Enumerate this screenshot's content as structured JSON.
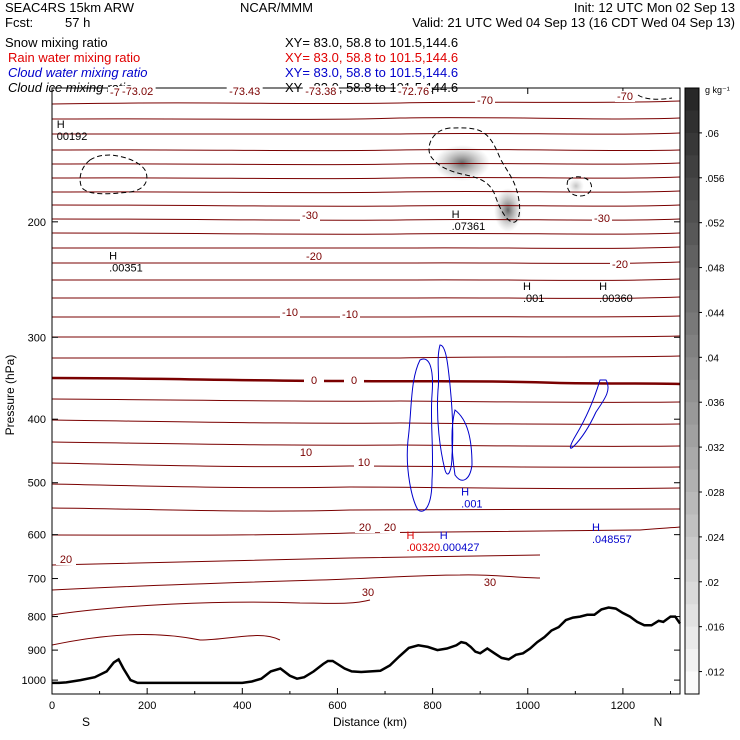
{
  "header": {
    "model": "SEAC4RS 15km ARW",
    "center": "NCAR/MMM",
    "init": "Init: 12 UTC Mon 02 Sep 13",
    "fcst_label": "Fcst:",
    "fcst_value": "57 h",
    "valid": "Valid: 21 UTC Wed 04 Sep 13 (16 CDT Wed 04 Sep 13)"
  },
  "fields": [
    {
      "name": "Snow mixing ratio",
      "xy": "XY=  83.0, 58.8 to 101.5,144.6",
      "color": "#000000"
    },
    {
      "name": "Rain water mixing ratio",
      "xy": "XY=  83.0, 58.8 to 101.5,144.6",
      "color": "#e00000"
    },
    {
      "name": "Cloud water mixing ratio",
      "xy": "XY=  83.0, 58.8 to 101.5,144.6",
      "color": "#0000cc"
    },
    {
      "name": "Cloud ice mixing ratio",
      "xy": "XY=  83.0, 58.8 to 101.5,144.6",
      "color": "#000000"
    }
  ],
  "chart_data": {
    "type": "contour cross-section",
    "xlabel": "Distance (km)",
    "ylabel": "Pressure (hPa)",
    "x_ticks": [
      0,
      200,
      400,
      600,
      800,
      1000,
      1200
    ],
    "y_ticks": [
      200,
      300,
      400,
      500,
      600,
      700,
      800,
      900,
      1000
    ],
    "xlim": [
      0,
      1320
    ],
    "ylim": [
      1050,
      125
    ],
    "y_scale": "log",
    "end_labels": {
      "left": "S",
      "right": "N"
    },
    "colorbar": {
      "units": "g kg⁻¹",
      "ticks": [
        ".012",
        ".016",
        ".02",
        ".024",
        ".028",
        ".032",
        ".036",
        ".04",
        ".044",
        ".048",
        ".052",
        ".056",
        ".06"
      ],
      "range": [
        0.01,
        0.064
      ]
    },
    "temperature_contours": {
      "color": "#7a0000",
      "zero_color": "#7a0000",
      "interval_c": 5,
      "labels": [
        "-70",
        "-70",
        "-70",
        "-30",
        "-30",
        "-20",
        "-20",
        "-10",
        "-10",
        "0",
        "0",
        "10",
        "10",
        "20",
        "20",
        "20",
        "30",
        "30"
      ]
    },
    "extrema_labels": [
      {
        "text": "-73.02",
        "x": 180,
        "p": 128
      },
      {
        "text": "-73.43",
        "x": 405,
        "p": 128
      },
      {
        "text": "-73.38",
        "x": 565,
        "p": 128
      },
      {
        "text": "-72.76",
        "x": 760,
        "p": 128
      }
    ],
    "maxima": [
      {
        "mark": "H",
        "value": "00192",
        "x": 10,
        "p": 150,
        "color": "#000000"
      },
      {
        "mark": "H",
        "value": ".00351",
        "x": 120,
        "p": 238,
        "color": "#000000"
      },
      {
        "mark": "H",
        "value": ".07361",
        "x": 840,
        "p": 206,
        "color": "#000000"
      },
      {
        "mark": "H",
        "value": ".001",
        "x": 990,
        "p": 265,
        "color": "#000000"
      },
      {
        "mark": "H",
        "value": ".00360",
        "x": 1150,
        "p": 265,
        "color": "#000000"
      },
      {
        "mark": "H",
        "value": ".001",
        "x": 860,
        "p": 545,
        "color": "#0000cc"
      },
      {
        "mark": "H",
        "value": ".048557",
        "x": 1135,
        "p": 618,
        "color": "#0000cc"
      },
      {
        "mark": "H",
        "value": ".00320",
        "x": 745,
        "p": 635,
        "color": "#e00000"
      },
      {
        "mark": "H",
        "value": ".000427",
        "x": 815,
        "p": 635,
        "color": "#0000cc"
      }
    ],
    "terrain": {
      "color": "#000000",
      "x": [
        0,
        15,
        30,
        60,
        90,
        115,
        130,
        140,
        150,
        165,
        180,
        200,
        250,
        300,
        350,
        400,
        420,
        440,
        460,
        480,
        500,
        515,
        530,
        550,
        570,
        580,
        590,
        600,
        615,
        630,
        650,
        670,
        690,
        710,
        730,
        750,
        770,
        790,
        810,
        830,
        850,
        860,
        870,
        880,
        890,
        900,
        915,
        930,
        945,
        960,
        975,
        990,
        1005,
        1020,
        1035,
        1050,
        1065,
        1080,
        1095,
        1110,
        1125,
        1140,
        1155,
        1170,
        1185,
        1200,
        1215,
        1230,
        1245,
        1260,
        1275,
        1285,
        1300,
        1310,
        1320
      ],
      "p": [
        1010,
        1010,
        1008,
        1000,
        990,
        970,
        940,
        930,
        960,
        1000,
        1010,
        1010,
        1010,
        1010,
        1010,
        1010,
        1005,
        995,
        970,
        960,
        985,
        995,
        990,
        970,
        945,
        935,
        935,
        945,
        960,
        970,
        972,
        970,
        968,
        950,
        920,
        893,
        885,
        890,
        900,
        895,
        885,
        875,
        878,
        890,
        905,
        910,
        895,
        910,
        925,
        930,
        915,
        910,
        895,
        875,
        860,
        840,
        830,
        810,
        803,
        800,
        795,
        795,
        780,
        775,
        778,
        790,
        800,
        815,
        825,
        825,
        812,
        815,
        800,
        800,
        820
      ]
    },
    "reference_point": {
      "x": 0,
      "p": 1000
    }
  }
}
